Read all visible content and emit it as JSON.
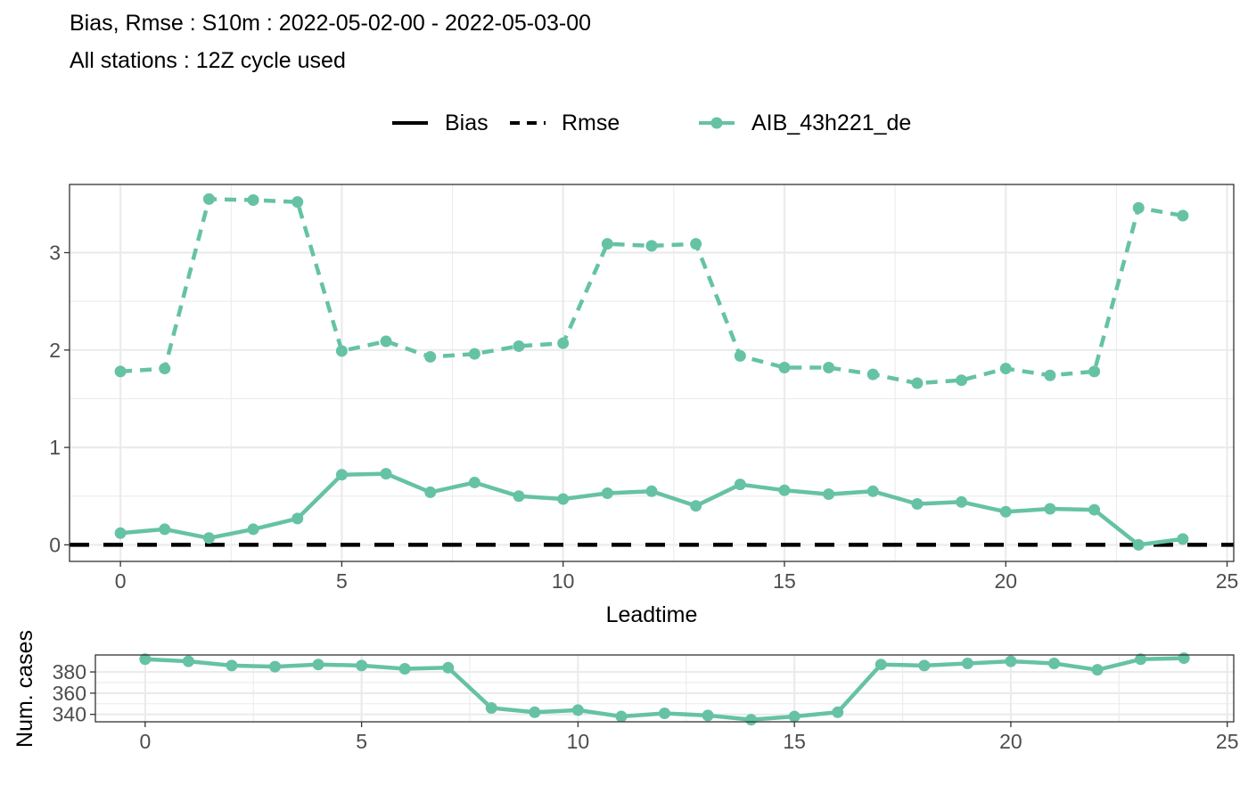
{
  "title": "Bias, Rmse : S10m : 2022-05-02-00 - 2022-05-03-00",
  "subtitle": "All stations : 12Z cycle used",
  "legend": {
    "score_bias": "Bias",
    "score_rmse": "Rmse",
    "model": "AIB_43h221_de"
  },
  "colors": {
    "model": "#66c2a5",
    "reference": "#000000",
    "grid": "#ebebeb",
    "panel_border": "#333333"
  },
  "chart_data": [
    {
      "type": "line",
      "xlabel": "Leadtime",
      "ylabel": "",
      "xlim": [
        -1.15,
        25.15
      ],
      "ylim": [
        -0.17,
        3.7
      ],
      "x_ticks": [
        0,
        5,
        10,
        15,
        20,
        25
      ],
      "y_ticks": [
        0,
        1,
        2,
        3
      ],
      "x_tick_labels": [
        "0",
        "5",
        "10",
        "15",
        "20",
        "25"
      ],
      "y_tick_labels": [
        "0",
        "1",
        "2",
        "3"
      ],
      "grid": true,
      "legend_position": "top",
      "reference_line": {
        "name": "Bias zero",
        "y": 0,
        "style": "dashed"
      },
      "x": [
        0,
        1,
        2,
        3,
        4,
        5,
        6,
        7,
        8,
        9,
        10,
        11,
        12,
        13,
        14,
        15,
        16,
        17,
        18,
        19,
        20,
        21,
        22,
        23,
        24
      ],
      "series": [
        {
          "name": "Rmse",
          "style": "dashed",
          "values": [
            1.78,
            1.81,
            3.55,
            3.54,
            3.52,
            1.99,
            2.09,
            1.93,
            1.96,
            2.04,
            2.07,
            3.09,
            3.07,
            3.09,
            1.94,
            1.82,
            1.82,
            1.75,
            1.66,
            1.69,
            1.81,
            1.74,
            1.78,
            3.46,
            3.38
          ]
        },
        {
          "name": "Bias",
          "style": "solid",
          "values": [
            0.12,
            0.16,
            0.07,
            0.16,
            0.27,
            0.72,
            0.73,
            0.54,
            0.64,
            0.5,
            0.47,
            0.53,
            0.55,
            0.4,
            0.62,
            0.56,
            0.52,
            0.55,
            0.42,
            0.44,
            0.34,
            0.37,
            0.36,
            0.0,
            0.06
          ]
        }
      ]
    },
    {
      "type": "line",
      "xlabel": "",
      "ylabel": "Num. cases",
      "xlim": [
        -1.15,
        25.15
      ],
      "ylim": [
        333,
        396
      ],
      "x_ticks": [
        0,
        5,
        10,
        15,
        20,
        25
      ],
      "y_ticks": [
        340,
        360,
        380
      ],
      "x_tick_labels": [
        "0",
        "5",
        "10",
        "15",
        "20",
        "25"
      ],
      "y_tick_labels": [
        "340",
        "360",
        "380"
      ],
      "grid": true,
      "x": [
        0,
        1,
        2,
        3,
        4,
        5,
        6,
        7,
        8,
        9,
        10,
        11,
        12,
        13,
        14,
        15,
        16,
        17,
        18,
        19,
        20,
        21,
        22,
        23,
        24
      ],
      "series": [
        {
          "name": "AIB_43h221_de",
          "values": [
            392,
            390,
            386,
            385,
            387,
            386,
            383,
            384,
            346,
            342,
            344,
            338,
            341,
            339,
            335,
            338,
            342,
            387,
            386,
            388,
            390,
            388,
            382,
            392,
            393
          ]
        }
      ]
    }
  ]
}
